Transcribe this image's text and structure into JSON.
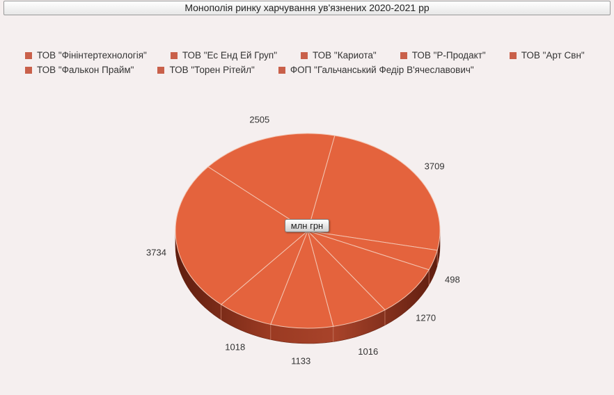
{
  "title": "Монополія ринку харчування ув'язнених 2020-2021 рр",
  "center_label": "млн грн",
  "colors": {
    "slice": "#e4633d",
    "side": "#8c2f1a",
    "legend": "#c9604a"
  },
  "chart_data": {
    "type": "pie",
    "title": "Монополія ринку харчування ув'язнених 2020-2021 рр",
    "unit": "млн грн",
    "legend_position": "top",
    "categories": [
      "ТОВ \"Фінінтертехнологія\"",
      "ТОВ \"Ес Енд Ей Груп\"",
      "ТОВ \"Кариота\"",
      "ТОВ \"Р-Продакт\"",
      "ТОВ \"Арт Свн\"",
      "ТОВ \"Фалькон Прайм\"",
      "ТОВ \"Торен Рітейл\"",
      "ФОП \"Гальчанський Федір В'ячеславович\""
    ],
    "values": [
      3709,
      498,
      1270,
      1016,
      1133,
      1018,
      3734,
      2505
    ]
  }
}
